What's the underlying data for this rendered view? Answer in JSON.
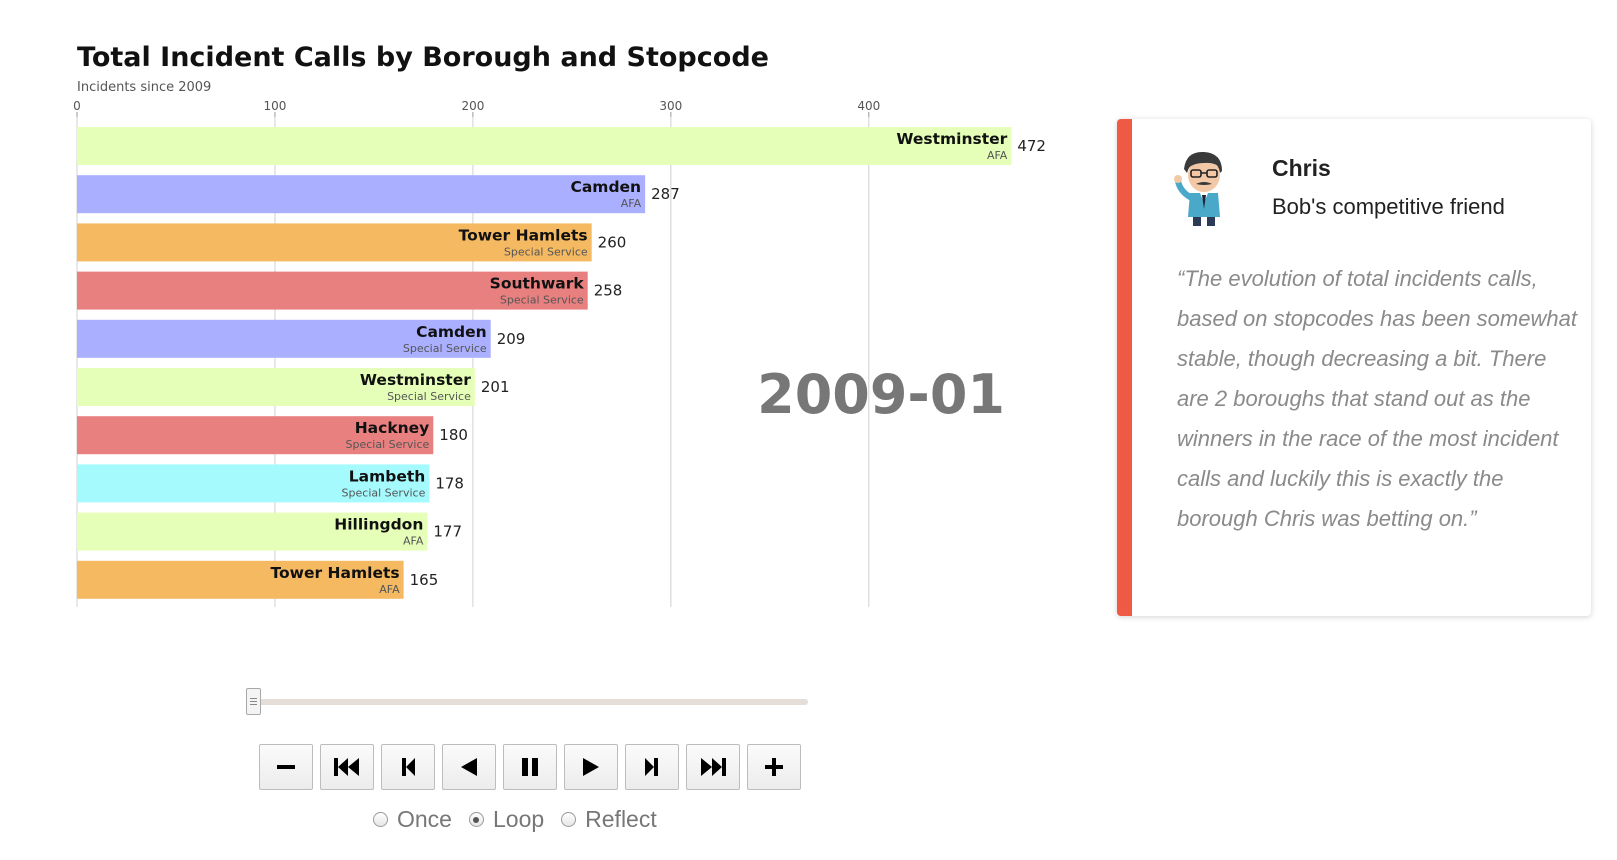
{
  "chart_data": {
    "type": "bar",
    "orientation": "horizontal",
    "title": "Total Incident Calls by Borough and Stopcode",
    "subtitle": "Incidents since 2009",
    "period": "2009-01",
    "xlim": [
      0,
      472
    ],
    "x_ticks": [
      0,
      100,
      200,
      300,
      400
    ],
    "grid": true,
    "bars": [
      {
        "label": "Westminster",
        "sublabel": "AFA",
        "value": 472,
        "color": "#e5ffb8"
      },
      {
        "label": "Camden",
        "sublabel": "AFA",
        "value": 287,
        "color": "#aab0ff"
      },
      {
        "label": "Tower Hamlets",
        "sublabel": "Special Service",
        "value": 260,
        "color": "#f5b962"
      },
      {
        "label": "Southwark",
        "sublabel": "Special Service",
        "value": 258,
        "color": "#e88080"
      },
      {
        "label": "Camden",
        "sublabel": "Special Service",
        "value": 209,
        "color": "#aab0ff"
      },
      {
        "label": "Westminster",
        "sublabel": "Special Service",
        "value": 201,
        "color": "#e5ffb8"
      },
      {
        "label": "Hackney",
        "sublabel": "Special Service",
        "value": 180,
        "color": "#e88080"
      },
      {
        "label": "Lambeth",
        "sublabel": "Special Service",
        "value": 178,
        "color": "#a5fafd"
      },
      {
        "label": "Hillingdon",
        "sublabel": "AFA",
        "value": 177,
        "color": "#e5ffb8"
      },
      {
        "label": "Tower Hamlets",
        "sublabel": "AFA",
        "value": 165,
        "color": "#f5b962"
      }
    ]
  },
  "player": {
    "slider_value": 0,
    "buttons": [
      {
        "name": "decrease-speed-button",
        "icon": "minus-icon"
      },
      {
        "name": "first-frame-button",
        "icon": "skip-first-icon"
      },
      {
        "name": "previous-frame-button",
        "icon": "step-back-icon"
      },
      {
        "name": "play-reverse-button",
        "icon": "play-reverse-icon"
      },
      {
        "name": "pause-button",
        "icon": "pause-icon"
      },
      {
        "name": "play-button",
        "icon": "play-icon"
      },
      {
        "name": "next-frame-button",
        "icon": "step-forward-icon"
      },
      {
        "name": "last-frame-button",
        "icon": "skip-last-icon"
      },
      {
        "name": "increase-speed-button",
        "icon": "plus-icon"
      }
    ],
    "modes": [
      {
        "label": "Once",
        "checked": false
      },
      {
        "label": "Loop",
        "checked": true
      },
      {
        "label": "Reflect",
        "checked": false
      }
    ]
  },
  "testimonial": {
    "name": "Chris",
    "role": "Bob's competitive friend",
    "quote": "“The evolution of total incidents calls, based on stopcodes has been somewhat stable, though decreasing a bit. There are 2 boroughs that stand out as the winners in the race of the most incident calls and luckily this is exactly the borough Chris was betting on.”",
    "accent_color": "#ef5a45"
  }
}
